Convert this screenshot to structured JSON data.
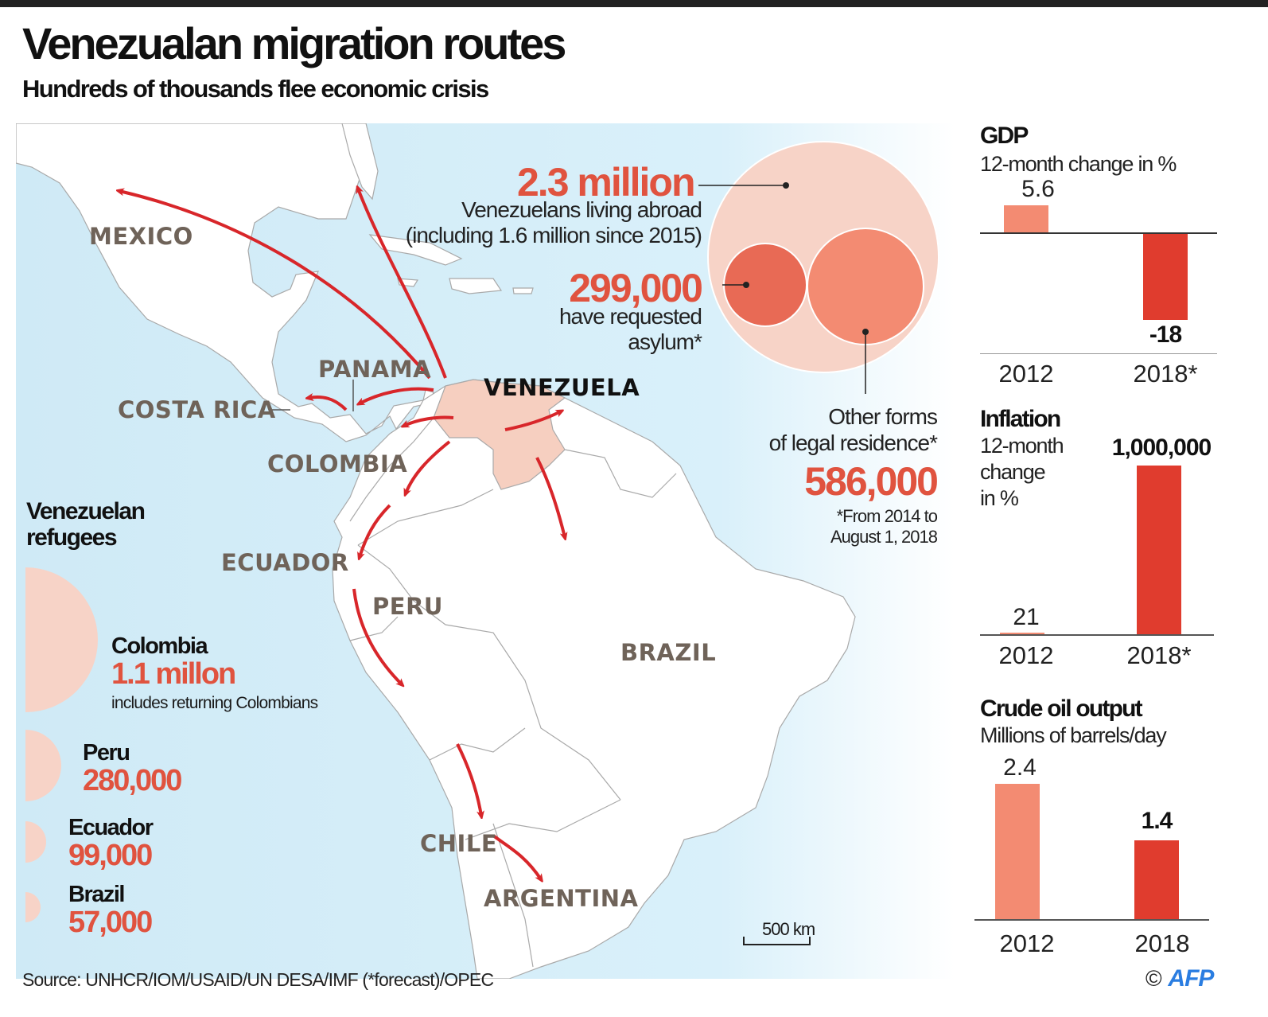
{
  "title": "Venezualan migration routes",
  "subtitle": "Hundreds of thousands flee economic crisis",
  "map": {
    "countries": {
      "mexico": "MEXICO",
      "panama": "PANAMA",
      "costa_rica": "COSTA RICA",
      "venezuela": "VENEZUELA",
      "colombia": "COLOMBIA",
      "ecuador": "ECUADOR",
      "peru": "PERU",
      "brazil": "BRAZIL",
      "chile": "CHILE",
      "argentina": "ARGENTINA"
    },
    "scale_label": "500 km",
    "colors": {
      "sea": "#d9f0fa",
      "land": "#ffffff",
      "venezuela": "#f6cfc0",
      "arrow": "#d8262a",
      "border": "#a9a9a9"
    }
  },
  "abroad": {
    "total_value": "2.3 million",
    "total_line1": "Venezuelans living abroad",
    "total_line2": "(including 1.6 million since 2015)",
    "asylum_value": "299,000",
    "asylum_line1": "have requested",
    "asylum_line2": "asylum*",
    "legal_line1": "Other forms",
    "legal_line2": "of legal residence*",
    "legal_value": "586,000",
    "footnote_line1": "*From 2014 to",
    "footnote_line2": "August 1,  2018",
    "colors": {
      "total": "#f7d3c7",
      "asylum": "#e86a55",
      "legal": "#f38b72"
    }
  },
  "refugees": {
    "heading_line1": "Venezuelan",
    "heading_line2": "refugees",
    "items": [
      {
        "country": "Colombia",
        "value": "1.1 millon",
        "note": "includes returning Colombians"
      },
      {
        "country": "Peru",
        "value": "280,000"
      },
      {
        "country": "Ecuador",
        "value": "99,000"
      },
      {
        "country": "Brazil",
        "value": "57,000"
      }
    ],
    "color": "#f7d3c7"
  },
  "charts": {
    "gdp": {
      "title": "GDP",
      "subtitle": "12-month change in %",
      "labels": [
        "5.6",
        "-18"
      ],
      "years": [
        "2012",
        "2018*"
      ]
    },
    "inflation": {
      "title": "Inflation",
      "subtitle_line1": "12-month",
      "subtitle_line2": "change",
      "subtitle_line3": "in %",
      "labels": [
        "21",
        "1,000,000"
      ],
      "years": [
        "2012",
        "2018*"
      ]
    },
    "oil": {
      "title": "Crude oil output",
      "subtitle": "Millions of barrels/day",
      "labels": [
        "2.4",
        "1.4"
      ],
      "years": [
        "2012",
        "2018"
      ]
    },
    "colors": {
      "light": "#f38b72",
      "dark": "#e03c2e"
    }
  },
  "chart_data": [
    {
      "type": "bar",
      "title": "GDP",
      "subtitle": "12-month change in %",
      "categories": [
        "2012",
        "2018*"
      ],
      "values": [
        5.6,
        -18
      ]
    },
    {
      "type": "bar",
      "title": "Inflation",
      "subtitle": "12-month change in %",
      "categories": [
        "2012",
        "2018*"
      ],
      "values": [
        21,
        1000000
      ]
    },
    {
      "type": "bar",
      "title": "Crude oil output",
      "subtitle": "Millions of barrels/day",
      "categories": [
        "2012",
        "2018"
      ],
      "values": [
        2.4,
        1.4
      ]
    }
  ],
  "source": "Source: UNHCR/IOM/USAID/UN DESA/IMF (*forecast)/OPEC",
  "credit": {
    "copyright": "©",
    "logo": "AFP"
  }
}
